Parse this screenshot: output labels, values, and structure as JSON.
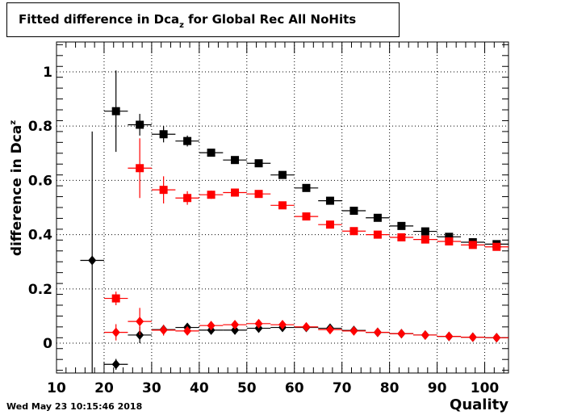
{
  "chart_data": {
    "type": "scatter",
    "title": {
      "prefix": "Fitted difference in Dca",
      "sub": "z",
      "suffix": " for Global Rec All NoHits"
    },
    "xlabel": "Quality",
    "ylabel": {
      "prefix": "difference in Dca",
      "sup": "z"
    },
    "xlim": [
      10,
      105
    ],
    "ylim": [
      -0.11,
      1.11
    ],
    "x_ticks": [
      10,
      20,
      30,
      40,
      50,
      60,
      70,
      80,
      90,
      100
    ],
    "y_ticks": [
      0,
      0.2,
      0.4,
      0.6,
      0.8,
      1
    ],
    "grid": true,
    "series": [
      {
        "marker": "square",
        "color": "#000000",
        "points": [
          {
            "x": 22.5,
            "y": 0.855,
            "yerr": 0.15
          },
          {
            "x": 27.5,
            "y": 0.805,
            "yerr": 0.04
          },
          {
            "x": 32.5,
            "y": 0.77,
            "yerr": 0.03
          },
          {
            "x": 37.5,
            "y": 0.745,
            "yerr": 0.02
          },
          {
            "x": 42.5,
            "y": 0.702,
            "yerr": 0.012
          },
          {
            "x": 47.5,
            "y": 0.675,
            "yerr": 0.01
          },
          {
            "x": 52.5,
            "y": 0.663,
            "yerr": 0.01
          },
          {
            "x": 57.5,
            "y": 0.62,
            "yerr": 0.008
          },
          {
            "x": 62.5,
            "y": 0.572,
            "yerr": 0.008
          },
          {
            "x": 67.5,
            "y": 0.525,
            "yerr": 0.007
          },
          {
            "x": 72.5,
            "y": 0.488,
            "yerr": 0.006
          },
          {
            "x": 77.5,
            "y": 0.462,
            "yerr": 0.006
          },
          {
            "x": 82.5,
            "y": 0.432,
            "yerr": 0.006
          },
          {
            "x": 87.5,
            "y": 0.412,
            "yerr": 0.006
          },
          {
            "x": 92.5,
            "y": 0.392,
            "yerr": 0.006
          },
          {
            "x": 97.5,
            "y": 0.372,
            "yerr": 0.006
          },
          {
            "x": 102.5,
            "y": 0.365,
            "yerr": 0.006
          }
        ]
      },
      {
        "marker": "square",
        "color": "#ff0000",
        "points": [
          {
            "x": 22.5,
            "y": 0.165,
            "yerr": 0.025
          },
          {
            "x": 27.5,
            "y": 0.645,
            "yerr": 0.11
          },
          {
            "x": 32.5,
            "y": 0.565,
            "yerr": 0.05
          },
          {
            "x": 37.5,
            "y": 0.535,
            "yerr": 0.025
          },
          {
            "x": 42.5,
            "y": 0.547,
            "yerr": 0.015
          },
          {
            "x": 47.5,
            "y": 0.555,
            "yerr": 0.01
          },
          {
            "x": 52.5,
            "y": 0.55,
            "yerr": 0.01
          },
          {
            "x": 57.5,
            "y": 0.508,
            "yerr": 0.008
          },
          {
            "x": 62.5,
            "y": 0.467,
            "yerr": 0.008
          },
          {
            "x": 67.5,
            "y": 0.437,
            "yerr": 0.007
          },
          {
            "x": 72.5,
            "y": 0.413,
            "yerr": 0.006
          },
          {
            "x": 77.5,
            "y": 0.4,
            "yerr": 0.006
          },
          {
            "x": 82.5,
            "y": 0.39,
            "yerr": 0.006
          },
          {
            "x": 87.5,
            "y": 0.382,
            "yerr": 0.006
          },
          {
            "x": 92.5,
            "y": 0.375,
            "yerr": 0.006
          },
          {
            "x": 97.5,
            "y": 0.362,
            "yerr": 0.006
          },
          {
            "x": 102.5,
            "y": 0.355,
            "yerr": 0.006
          }
        ]
      },
      {
        "marker": "diamond",
        "color": "#000000",
        "points": [
          {
            "x": 17.5,
            "y": 0.305,
            "yerr": 0.475
          },
          {
            "x": 22.5,
            "y": -0.078,
            "yerr": 0.02
          },
          {
            "x": 27.5,
            "y": 0.03,
            "yerr": 0.03
          },
          {
            "x": 32.5,
            "y": 0.05,
            "yerr": 0.015
          },
          {
            "x": 37.5,
            "y": 0.058,
            "yerr": 0.008
          },
          {
            "x": 42.5,
            "y": 0.048,
            "yerr": 0.006
          },
          {
            "x": 47.5,
            "y": 0.048,
            "yerr": 0.005
          },
          {
            "x": 52.5,
            "y": 0.055,
            "yerr": 0.005
          },
          {
            "x": 57.5,
            "y": 0.058,
            "yerr": 0.005
          },
          {
            "x": 62.5,
            "y": 0.058,
            "yerr": 0.004
          },
          {
            "x": 67.5,
            "y": 0.055,
            "yerr": 0.004
          },
          {
            "x": 72.5,
            "y": 0.047,
            "yerr": 0.004
          },
          {
            "x": 77.5,
            "y": 0.04,
            "yerr": 0.004
          },
          {
            "x": 82.5,
            "y": 0.035,
            "yerr": 0.004
          },
          {
            "x": 87.5,
            "y": 0.03,
            "yerr": 0.004
          },
          {
            "x": 92.5,
            "y": 0.025,
            "yerr": 0.004
          },
          {
            "x": 97.5,
            "y": 0.022,
            "yerr": 0.004
          },
          {
            "x": 102.5,
            "y": 0.02,
            "yerr": 0.004
          }
        ]
      },
      {
        "marker": "diamond",
        "color": "#ff0000",
        "points": [
          {
            "x": 22.5,
            "y": 0.04,
            "yerr": 0.03
          },
          {
            "x": 27.5,
            "y": 0.08,
            "yerr": 0.05
          },
          {
            "x": 32.5,
            "y": 0.048,
            "yerr": 0.02
          },
          {
            "x": 37.5,
            "y": 0.045,
            "yerr": 0.01
          },
          {
            "x": 42.5,
            "y": 0.065,
            "yerr": 0.007
          },
          {
            "x": 47.5,
            "y": 0.068,
            "yerr": 0.006
          },
          {
            "x": 52.5,
            "y": 0.072,
            "yerr": 0.005
          },
          {
            "x": 57.5,
            "y": 0.068,
            "yerr": 0.005
          },
          {
            "x": 62.5,
            "y": 0.06,
            "yerr": 0.004
          },
          {
            "x": 67.5,
            "y": 0.05,
            "yerr": 0.004
          },
          {
            "x": 72.5,
            "y": 0.045,
            "yerr": 0.004
          },
          {
            "x": 77.5,
            "y": 0.04,
            "yerr": 0.004
          },
          {
            "x": 82.5,
            "y": 0.035,
            "yerr": 0.004
          },
          {
            "x": 87.5,
            "y": 0.03,
            "yerr": 0.004
          },
          {
            "x": 92.5,
            "y": 0.025,
            "yerr": 0.004
          },
          {
            "x": 97.5,
            "y": 0.022,
            "yerr": 0.004
          },
          {
            "x": 102.5,
            "y": 0.02,
            "yerr": 0.004
          }
        ]
      }
    ]
  },
  "timestamp": "Wed May 23 10:15:46 2018"
}
